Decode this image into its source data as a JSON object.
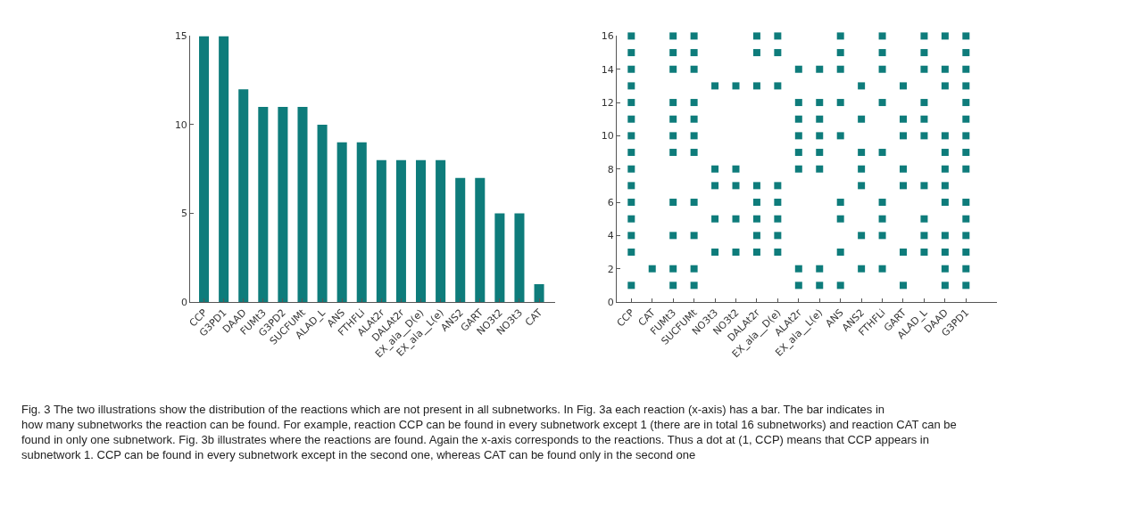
{
  "chart_data": [
    {
      "type": "bar",
      "categories": [
        "CCP",
        "G3PD1",
        "DAAD",
        "FUMt3",
        "G3PD2",
        "SUCFUMt",
        "ALAD_L",
        "ANS",
        "FTHFLi",
        "ALAt2r",
        "DALAt2r",
        "EX_ala__D(e)",
        "EX_ala__L(e)",
        "ANS2",
        "GART",
        "NO3t2",
        "NO3t3",
        "CAT"
      ],
      "values": [
        15,
        15,
        12,
        11,
        11,
        11,
        10,
        9,
        9,
        8,
        8,
        8,
        8,
        7,
        7,
        5,
        5,
        1
      ],
      "color": "#0e7c7b",
      "ylim": [
        0,
        15
      ],
      "yticks": [
        0,
        5,
        10,
        15
      ]
    },
    {
      "type": "scatter",
      "categories": [
        "CCP",
        "CAT",
        "FUMt3",
        "SUCFUMt",
        "NO3t3",
        "NO3t2",
        "DALAt2r",
        "EX_ala__D(e)",
        "ALAt2r",
        "EX_ala__L(e)",
        "ANS",
        "ANS2",
        "FTHFLi",
        "GART",
        "ALAD_L",
        "DAAD",
        "G3PD1"
      ],
      "series": [
        {
          "color": "#0e7c7b",
          "x": [
            "CCP",
            "CCP",
            "CCP",
            "CCP",
            "CCP",
            "CCP",
            "CCP",
            "CCP",
            "CCP",
            "CCP",
            "CCP",
            "CCP",
            "CCP",
            "CCP",
            "CCP",
            "CAT",
            "FUMt3",
            "FUMt3",
            "FUMt3",
            "FUMt3",
            "FUMt3",
            "FUMt3",
            "FUMt3",
            "FUMt3",
            "FUMt3",
            "FUMt3",
            "FUMt3",
            "SUCFUMt",
            "SUCFUMt",
            "SUCFUMt",
            "SUCFUMt",
            "SUCFUMt",
            "SUCFUMt",
            "SUCFUMt",
            "SUCFUMt",
            "SUCFUMt",
            "SUCFUMt",
            "SUCFUMt",
            "NO3t3",
            "NO3t3",
            "NO3t3",
            "NO3t3",
            "NO3t3",
            "NO3t2",
            "NO3t2",
            "NO3t2",
            "NO3t2",
            "NO3t2",
            "DALAt2r",
            "DALAt2r",
            "DALAt2r",
            "DALAt2r",
            "DALAt2r",
            "DALAt2r",
            "DALAt2r",
            "DALAt2r",
            "EX_ala__D(e)",
            "EX_ala__D(e)",
            "EX_ala__D(e)",
            "EX_ala__D(e)",
            "EX_ala__D(e)",
            "EX_ala__D(e)",
            "EX_ala__D(e)",
            "EX_ala__D(e)",
            "ALAt2r",
            "ALAt2r",
            "ALAt2r",
            "ALAt2r",
            "ALAt2r",
            "ALAt2r",
            "ALAt2r",
            "ALAt2r",
            "EX_ala__L(e)",
            "EX_ala__L(e)",
            "EX_ala__L(e)",
            "EX_ala__L(e)",
            "EX_ala__L(e)",
            "EX_ala__L(e)",
            "EX_ala__L(e)",
            "EX_ala__L(e)",
            "ANS",
            "ANS",
            "ANS",
            "ANS",
            "ANS",
            "ANS",
            "ANS",
            "ANS",
            "ANS",
            "ANS2",
            "ANS2",
            "ANS2",
            "ANS2",
            "ANS2",
            "ANS2",
            "ANS2",
            "FTHFLi",
            "FTHFLi",
            "FTHFLi",
            "FTHFLi",
            "FTHFLi",
            "FTHFLi",
            "FTHFLi",
            "FTHFLi",
            "FTHFLi",
            "GART",
            "GART",
            "GART",
            "GART",
            "GART",
            "GART",
            "GART",
            "ALAD_L",
            "ALAD_L",
            "ALAD_L",
            "ALAD_L",
            "ALAD_L",
            "ALAD_L",
            "ALAD_L",
            "ALAD_L",
            "ALAD_L",
            "ALAD_L",
            "DAAD",
            "DAAD",
            "DAAD",
            "DAAD",
            "DAAD",
            "DAAD",
            "DAAD",
            "DAAD",
            "DAAD",
            "DAAD",
            "DAAD",
            "DAAD",
            "G3PD1",
            "G3PD1",
            "G3PD1",
            "G3PD1",
            "G3PD1",
            "G3PD1",
            "G3PD1",
            "G3PD1",
            "G3PD1",
            "G3PD1",
            "G3PD1",
            "G3PD1",
            "G3PD1",
            "G3PD1",
            "G3PD1"
          ],
          "values": [
            1,
            3,
            4,
            5,
            6,
            7,
            8,
            9,
            10,
            11,
            12,
            13,
            14,
            15,
            16,
            2,
            1,
            2,
            4,
            6,
            9,
            10,
            11,
            12,
            14,
            15,
            16,
            1,
            2,
            4,
            6,
            9,
            10,
            11,
            12,
            14,
            15,
            16,
            3,
            5,
            7,
            8,
            13,
            3,
            5,
            7,
            8,
            13,
            3,
            4,
            5,
            6,
            7,
            13,
            15,
            16,
            3,
            4,
            5,
            6,
            7,
            13,
            15,
            16,
            1,
            2,
            8,
            9,
            10,
            11,
            12,
            14,
            1,
            2,
            8,
            9,
            10,
            11,
            12,
            14,
            1,
            3,
            5,
            6,
            10,
            12,
            14,
            15,
            16,
            2,
            4,
            7,
            8,
            9,
            11,
            13,
            2,
            4,
            5,
            6,
            9,
            12,
            14,
            15,
            16,
            1,
            3,
            7,
            8,
            10,
            11,
            13,
            3,
            4,
            5,
            7,
            10,
            11,
            12,
            14,
            15,
            16,
            1,
            2,
            3,
            4,
            6,
            7,
            8,
            9,
            10,
            13,
            14,
            16,
            1,
            2,
            3,
            4,
            5,
            6,
            8,
            9,
            10,
            11,
            12,
            13,
            14,
            15,
            16
          ]
        }
      ],
      "ylim": [
        0,
        16
      ],
      "yticks": [
        0,
        2,
        4,
        6,
        8,
        10,
        12,
        14,
        16
      ],
      "marker": "square",
      "annotations": [
        "Fig. 3 The two illustrations show the distribution of the reactions which are not present in all subnetworks. In Fig. 3a each reaction (x-axis) has a bar. The bar indicates in how many subnetworks the reaction can be found. For example, reaction CCP can be found in every subnetwork except 1 (there are in total 16 subnetworks) and reaction CAT can be found in only one subnetwork. Fig. 3b illustrates where the reactions are found. Again the x-axis corresponds to the reactions. Thus a dot at (1, CCP) means that CCP appears in subnetwork 1. CCP can be found in every subnetwork except in the second one, whereas CAT can be found only in the second one"
      ]
    }
  ]
}
